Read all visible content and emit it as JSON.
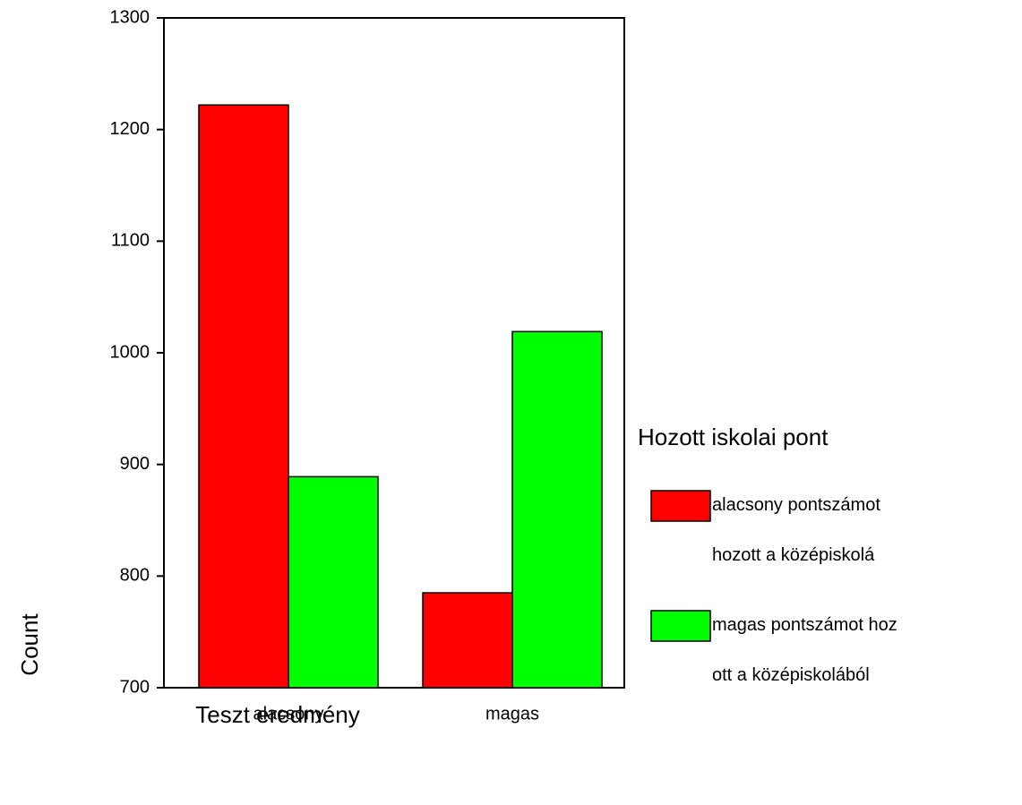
{
  "chart_data": {
    "type": "bar",
    "x_label": "Teszt eredmény",
    "y_label": "Count",
    "legend_title": "Hozott iskolai pont",
    "categories": [
      "alacsony",
      "magas"
    ],
    "series": [
      {
        "name": "alacsony pontszámot hozott a középiskolá",
        "color": "#ff0000",
        "values": [
          1222,
          785
        ]
      },
      {
        "name": "magas pontszámot hozott a középiskolából",
        "color": "#00ff00",
        "values": [
          889,
          1019
        ]
      }
    ],
    "ylim": [
      700,
      1300
    ],
    "yticks": [
      700,
      800,
      900,
      1000,
      1100,
      1200,
      1300
    ],
    "legend": "right"
  }
}
